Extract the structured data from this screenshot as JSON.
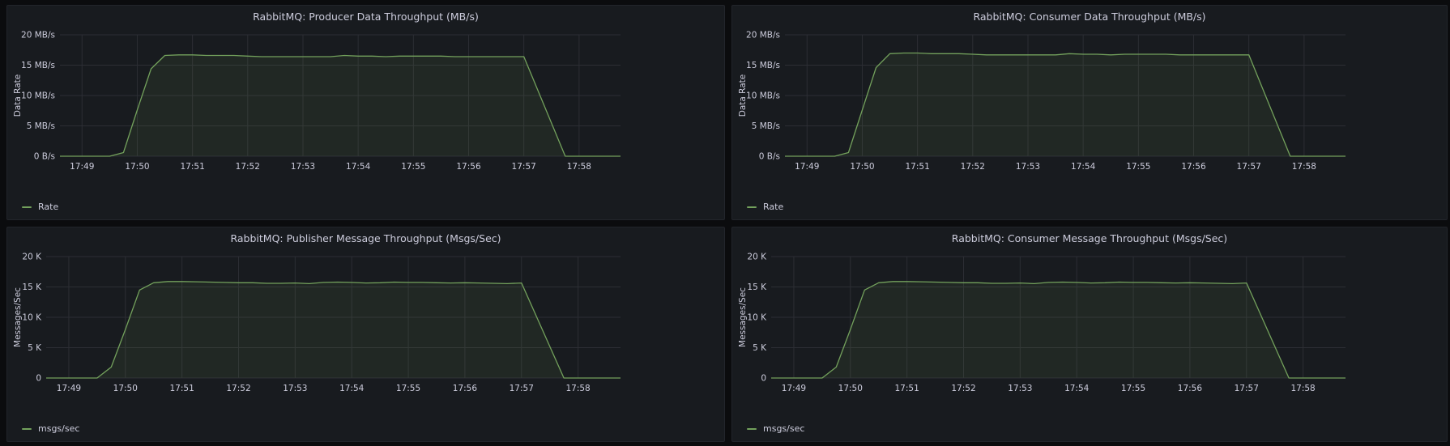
{
  "colors": {
    "series": "#73a15c",
    "fill": "rgba(115,161,92,0.10)",
    "grid": "#2c2e34",
    "tick": "#ccccdc"
  },
  "chart_data": [
    {
      "type": "area",
      "title": "RabbitMQ: Producer Data Throughput (MB/s)",
      "ylabel": "Data Rate",
      "xlabel": "",
      "ylim": [
        0,
        20
      ],
      "y_ticks": [
        0,
        5,
        10,
        15,
        20
      ],
      "y_tick_labels": [
        "0 B/s",
        "5 MB/s",
        "10 MB/s",
        "15 MB/s",
        "20 MB/s"
      ],
      "x_range": [
        48.6,
        58.75
      ],
      "x_ticks": [
        49,
        50,
        51,
        52,
        53,
        54,
        55,
        56,
        57,
        58
      ],
      "x_tick_labels": [
        "17:49",
        "17:50",
        "17:51",
        "17:52",
        "17:53",
        "17:54",
        "17:55",
        "17:56",
        "17:57",
        "17:58"
      ],
      "legend": "bottom-left",
      "series": [
        {
          "name": "Rate",
          "x": [
            48.6,
            49.0,
            49.5,
            49.75,
            50.0,
            50.25,
            50.5,
            50.75,
            51.0,
            51.25,
            51.5,
            51.75,
            52.0,
            52.25,
            52.5,
            52.75,
            53.0,
            53.25,
            53.5,
            53.75,
            54.0,
            54.25,
            54.5,
            54.75,
            55.0,
            55.25,
            55.5,
            55.75,
            56.0,
            56.25,
            56.5,
            56.75,
            57.0,
            57.75,
            58.0,
            58.25,
            58.75
          ],
          "values": [
            0,
            0,
            0,
            0.6,
            7.6,
            14.4,
            16.6,
            16.7,
            16.7,
            16.6,
            16.6,
            16.6,
            16.5,
            16.4,
            16.4,
            16.4,
            16.4,
            16.4,
            16.4,
            16.6,
            16.5,
            16.5,
            16.4,
            16.5,
            16.5,
            16.5,
            16.5,
            16.4,
            16.4,
            16.4,
            16.4,
            16.4,
            16.4,
            0,
            0,
            0,
            0
          ]
        }
      ]
    },
    {
      "type": "area",
      "title": "RabbitMQ: Consumer Data Throughput (MB/s)",
      "ylabel": "Data Rate",
      "xlabel": "",
      "ylim": [
        0,
        20
      ],
      "y_ticks": [
        0,
        5,
        10,
        15,
        20
      ],
      "y_tick_labels": [
        "0 B/s",
        "5 MB/s",
        "10 MB/s",
        "15 MB/s",
        "20 MB/s"
      ],
      "x_range": [
        48.6,
        58.75
      ],
      "x_ticks": [
        49,
        50,
        51,
        52,
        53,
        54,
        55,
        56,
        57,
        58
      ],
      "x_tick_labels": [
        "17:49",
        "17:50",
        "17:51",
        "17:52",
        "17:53",
        "17:54",
        "17:55",
        "17:56",
        "17:57",
        "17:58"
      ],
      "legend": "bottom-left",
      "series": [
        {
          "name": "Rate",
          "x": [
            48.6,
            49.0,
            49.5,
            49.75,
            50.0,
            50.25,
            50.5,
            50.75,
            51.0,
            51.25,
            51.5,
            51.75,
            52.0,
            52.25,
            52.5,
            52.75,
            53.0,
            53.25,
            53.5,
            53.75,
            54.0,
            54.25,
            54.5,
            54.75,
            55.0,
            55.25,
            55.5,
            55.75,
            56.0,
            56.25,
            56.5,
            56.75,
            57.0,
            57.75,
            58.0,
            58.25,
            58.75
          ],
          "values": [
            0,
            0,
            0,
            0.6,
            7.6,
            14.6,
            16.9,
            17.0,
            17.0,
            16.9,
            16.9,
            16.9,
            16.8,
            16.7,
            16.7,
            16.7,
            16.7,
            16.7,
            16.7,
            16.9,
            16.8,
            16.8,
            16.7,
            16.8,
            16.8,
            16.8,
            16.8,
            16.7,
            16.7,
            16.7,
            16.7,
            16.7,
            16.7,
            0,
            0,
            0,
            0
          ]
        }
      ]
    },
    {
      "type": "area",
      "title": "RabbitMQ: Publisher Message Throughput (Msgs/Sec)",
      "ylabel": "Messages/Sec",
      "xlabel": "",
      "ylim": [
        0,
        20000
      ],
      "y_ticks": [
        0,
        5000,
        10000,
        15000,
        20000
      ],
      "y_tick_labels": [
        "0",
        "5 K",
        "10 K",
        "15 K",
        "20 K"
      ],
      "x_range": [
        48.6,
        58.75
      ],
      "x_ticks": [
        49,
        50,
        51,
        52,
        53,
        54,
        55,
        56,
        57,
        58
      ],
      "x_tick_labels": [
        "17:49",
        "17:50",
        "17:51",
        "17:52",
        "17:53",
        "17:54",
        "17:55",
        "17:56",
        "17:57",
        "17:58"
      ],
      "legend": "bottom-left",
      "series": [
        {
          "name": "msgs/sec",
          "x": [
            48.6,
            49.0,
            49.5,
            49.75,
            50.0,
            50.25,
            50.5,
            50.75,
            51.0,
            51.25,
            51.5,
            51.75,
            52.0,
            52.25,
            52.5,
            52.75,
            53.0,
            53.25,
            53.5,
            53.75,
            54.0,
            54.25,
            54.5,
            54.75,
            55.0,
            55.25,
            55.5,
            55.75,
            56.0,
            56.25,
            56.5,
            56.75,
            57.0,
            57.75,
            58.0,
            58.25,
            58.75
          ],
          "values": [
            0,
            0,
            0,
            1800,
            8000,
            14500,
            15700,
            15900,
            15900,
            15850,
            15800,
            15750,
            15700,
            15700,
            15600,
            15600,
            15650,
            15550,
            15750,
            15800,
            15750,
            15650,
            15700,
            15800,
            15750,
            15750,
            15700,
            15650,
            15700,
            15650,
            15600,
            15550,
            15650,
            0,
            0,
            0,
            0
          ]
        }
      ]
    },
    {
      "type": "area",
      "title": "RabbitMQ: Consumer Message Throughput (Msgs/Sec)",
      "ylabel": "Messages/Sec",
      "xlabel": "",
      "ylim": [
        0,
        20000
      ],
      "y_ticks": [
        0,
        5000,
        10000,
        15000,
        20000
      ],
      "y_tick_labels": [
        "0",
        "5 K",
        "10 K",
        "15 K",
        "20 K"
      ],
      "x_range": [
        48.6,
        58.75
      ],
      "x_ticks": [
        49,
        50,
        51,
        52,
        53,
        54,
        55,
        56,
        57,
        58
      ],
      "x_tick_labels": [
        "17:49",
        "17:50",
        "17:51",
        "17:52",
        "17:53",
        "17:54",
        "17:55",
        "17:56",
        "17:57",
        "17:58"
      ],
      "legend": "bottom-left",
      "series": [
        {
          "name": "msgs/sec",
          "x": [
            48.6,
            49.0,
            49.5,
            49.75,
            50.0,
            50.25,
            50.5,
            50.75,
            51.0,
            51.25,
            51.5,
            51.75,
            52.0,
            52.25,
            52.5,
            52.75,
            53.0,
            53.25,
            53.5,
            53.75,
            54.0,
            54.25,
            54.5,
            54.75,
            55.0,
            55.25,
            55.5,
            55.75,
            56.0,
            56.25,
            56.5,
            56.75,
            57.0,
            57.75,
            58.0,
            58.25,
            58.75
          ],
          "values": [
            0,
            0,
            0,
            1800,
            8000,
            14500,
            15700,
            15900,
            15900,
            15850,
            15800,
            15750,
            15700,
            15700,
            15600,
            15600,
            15650,
            15550,
            15750,
            15800,
            15750,
            15650,
            15700,
            15800,
            15750,
            15750,
            15700,
            15650,
            15700,
            15650,
            15600,
            15550,
            15650,
            0,
            0,
            0,
            0
          ]
        }
      ]
    }
  ]
}
